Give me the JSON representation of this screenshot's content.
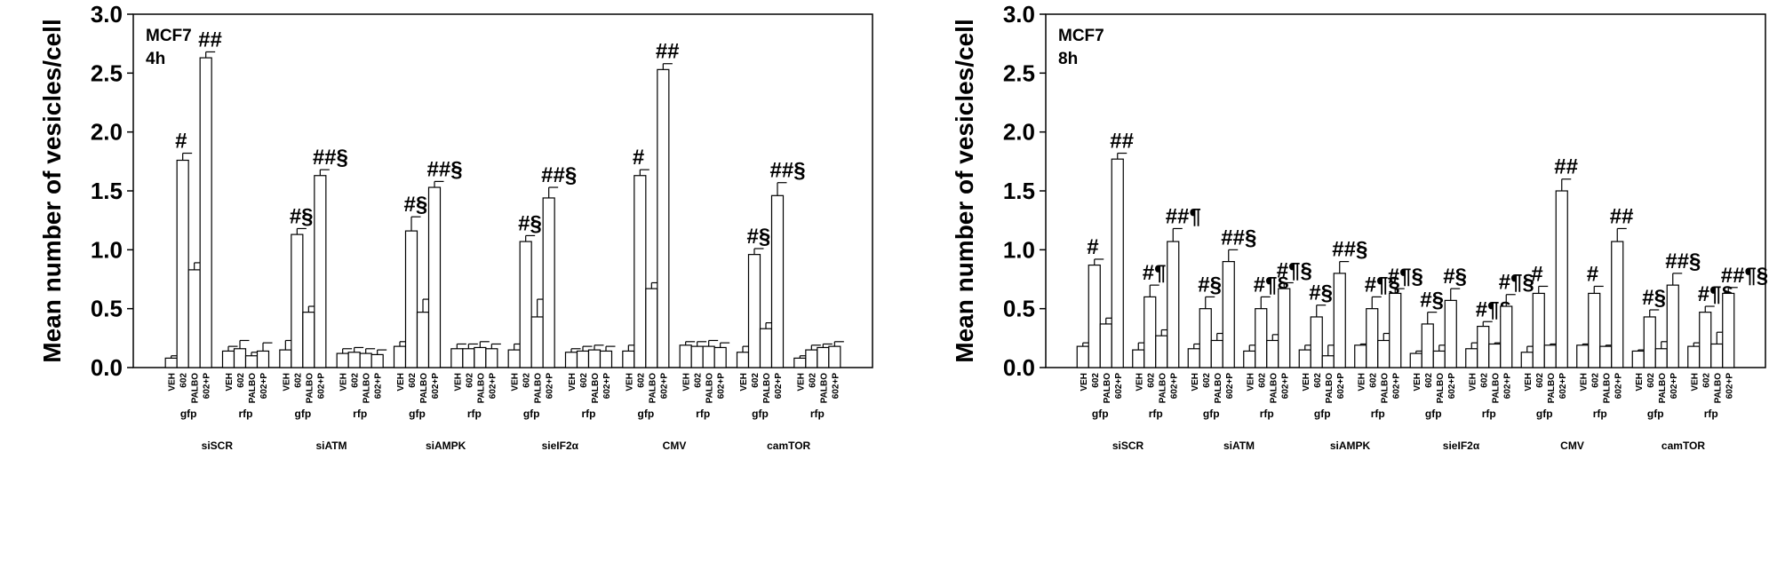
{
  "chart_data": [
    {
      "type": "bar",
      "label_lines": [
        "MCF7",
        "4h"
      ],
      "ylabel": "Mean number of vesicles/cell",
      "ylim": [
        0,
        3
      ],
      "yticks": [
        {
          "value": 0,
          "label": "0.0"
        },
        {
          "value": 0.5,
          "label": "0.5"
        },
        {
          "value": 1,
          "label": "1.0"
        },
        {
          "value": 1.5,
          "label": "1.5"
        },
        {
          "value": 2,
          "label": "2.0"
        },
        {
          "value": 2.5,
          "label": "2.5"
        },
        {
          "value": 3,
          "label": "3.0"
        }
      ],
      "bar_labels": [
        "VEH",
        "602",
        "PALBO",
        "602+P"
      ],
      "groups": [
        {
          "name": "siSCR",
          "subgroups": [
            {
              "name": "gfp",
              "values": [
                0.08,
                1.76,
                0.83,
                2.63
              ],
              "errors": [
                0.02,
                0.06,
                0.06,
                0.05
              ],
              "annotations": [
                null,
                "#",
                null,
                "##"
              ]
            },
            {
              "name": "rfp",
              "values": [
                0.14,
                0.16,
                0.1,
                0.14
              ],
              "errors": [
                0.04,
                0.07,
                0.03,
                0.07
              ],
              "annotations": [
                null,
                null,
                null,
                null
              ]
            }
          ]
        },
        {
          "name": "siATM",
          "subgroups": [
            {
              "name": "gfp",
              "values": [
                0.15,
                1.13,
                0.47,
                1.63
              ],
              "errors": [
                0.08,
                0.05,
                0.05,
                0.05
              ],
              "annotations": [
                null,
                "#§",
                null,
                "##§"
              ]
            },
            {
              "name": "rfp",
              "values": [
                0.12,
                0.13,
                0.12,
                0.11
              ],
              "errors": [
                0.04,
                0.04,
                0.04,
                0.04
              ],
              "annotations": [
                null,
                null,
                null,
                null
              ]
            }
          ]
        },
        {
          "name": "siAMPK",
          "subgroups": [
            {
              "name": "gfp",
              "values": [
                0.18,
                1.16,
                0.47,
                1.53
              ],
              "errors": [
                0.04,
                0.12,
                0.11,
                0.05
              ],
              "annotations": [
                null,
                "#§",
                null,
                "##§"
              ]
            },
            {
              "name": "rfp",
              "values": [
                0.16,
                0.16,
                0.17,
                0.16
              ],
              "errors": [
                0.04,
                0.04,
                0.05,
                0.04
              ],
              "annotations": [
                null,
                null,
                null,
                null
              ]
            }
          ]
        },
        {
          "name": "sieIF2α",
          "subgroups": [
            {
              "name": "gfp",
              "values": [
                0.15,
                1.07,
                0.43,
                1.44
              ],
              "errors": [
                0.05,
                0.05,
                0.15,
                0.09
              ],
              "annotations": [
                null,
                "#§",
                null,
                "##§"
              ]
            },
            {
              "name": "rfp",
              "values": [
                0.13,
                0.14,
                0.15,
                0.14
              ],
              "errors": [
                0.03,
                0.04,
                0.04,
                0.04
              ],
              "annotations": [
                null,
                null,
                null,
                null
              ]
            }
          ]
        },
        {
          "name": "CMV",
          "subgroups": [
            {
              "name": "gfp",
              "values": [
                0.14,
                1.63,
                0.67,
                2.53
              ],
              "errors": [
                0.05,
                0.05,
                0.05,
                0.05
              ],
              "annotations": [
                null,
                "#",
                null,
                "##"
              ]
            },
            {
              "name": "rfp",
              "values": [
                0.19,
                0.18,
                0.18,
                0.17
              ],
              "errors": [
                0.03,
                0.04,
                0.05,
                0.04
              ],
              "annotations": [
                null,
                null,
                null,
                null
              ]
            }
          ]
        },
        {
          "name": "camTOR",
          "subgroups": [
            {
              "name": "gfp",
              "values": [
                0.13,
                0.96,
                0.33,
                1.46
              ],
              "errors": [
                0.05,
                0.05,
                0.05,
                0.11
              ],
              "annotations": [
                null,
                "#§",
                null,
                "##§"
              ]
            },
            {
              "name": "rfp",
              "values": [
                0.08,
                0.15,
                0.17,
                0.18
              ],
              "errors": [
                0.02,
                0.04,
                0.03,
                0.04
              ],
              "annotations": [
                null,
                null,
                null,
                null
              ]
            }
          ]
        }
      ]
    },
    {
      "type": "bar",
      "label_lines": [
        "MCF7",
        "8h"
      ],
      "ylabel": "Mean number of vesicles/cell",
      "ylim": [
        0,
        3
      ],
      "yticks": [
        {
          "value": 0,
          "label": "0.0"
        },
        {
          "value": 0.5,
          "label": "0.5"
        },
        {
          "value": 1,
          "label": "1.0"
        },
        {
          "value": 1.5,
          "label": "1.5"
        },
        {
          "value": 2,
          "label": "2.0"
        },
        {
          "value": 2.5,
          "label": "2.5"
        },
        {
          "value": 3,
          "label": "3.0"
        }
      ],
      "bar_labels": [
        "VEH",
        "602",
        "PALBO",
        "602+P"
      ],
      "groups": [
        {
          "name": "siSCR",
          "subgroups": [
            {
              "name": "gfp",
              "values": [
                0.18,
                0.87,
                0.37,
                1.77
              ],
              "errors": [
                0.03,
                0.05,
                0.05,
                0.05
              ],
              "annotations": [
                null,
                "#",
                null,
                "##"
              ]
            },
            {
              "name": "rfp",
              "values": [
                0.15,
                0.6,
                0.27,
                1.07
              ],
              "errors": [
                0.06,
                0.1,
                0.05,
                0.11
              ],
              "annotations": [
                null,
                "#¶",
                null,
                "##¶"
              ]
            }
          ]
        },
        {
          "name": "siATM",
          "subgroups": [
            {
              "name": "gfp",
              "values": [
                0.16,
                0.5,
                0.23,
                0.9
              ],
              "errors": [
                0.04,
                0.1,
                0.06,
                0.1
              ],
              "annotations": [
                null,
                "#§",
                null,
                "##§"
              ]
            },
            {
              "name": "rfp",
              "values": [
                0.14,
                0.5,
                0.23,
                0.67
              ],
              "errors": [
                0.05,
                0.1,
                0.05,
                0.05
              ],
              "annotations": [
                null,
                "#¶§",
                null,
                "#¶§"
              ]
            }
          ]
        },
        {
          "name": "siAMPK",
          "subgroups": [
            {
              "name": "gfp",
              "values": [
                0.15,
                0.43,
                0.1,
                0.8
              ],
              "errors": [
                0.04,
                0.1,
                0.09,
                0.1
              ],
              "annotations": [
                null,
                "#§",
                null,
                "##§"
              ]
            },
            {
              "name": "rfp",
              "values": [
                0.19,
                0.5,
                0.23,
                0.63
              ],
              "errors": [
                0.01,
                0.1,
                0.06,
                0.04
              ],
              "annotations": [
                null,
                "#¶§",
                null,
                "#¶§"
              ]
            }
          ]
        },
        {
          "name": "sieIF2α",
          "subgroups": [
            {
              "name": "gfp",
              "values": [
                0.12,
                0.37,
                0.14,
                0.57
              ],
              "errors": [
                0.02,
                0.1,
                0.05,
                0.1
              ],
              "annotations": [
                null,
                "#§",
                null,
                "#§"
              ]
            },
            {
              "name": "rfp",
              "values": [
                0.16,
                0.35,
                0.2,
                0.52
              ],
              "errors": [
                0.05,
                0.04,
                0.01,
                0.1
              ],
              "annotations": [
                null,
                "#¶§",
                null,
                "#¶§"
              ]
            }
          ]
        },
        {
          "name": "CMV",
          "subgroups": [
            {
              "name": "gfp",
              "values": [
                0.13,
                0.63,
                0.19,
                1.5
              ],
              "errors": [
                0.05,
                0.06,
                0.01,
                0.1
              ],
              "annotations": [
                null,
                "#",
                null,
                "##"
              ]
            },
            {
              "name": "rfp",
              "values": [
                0.19,
                0.63,
                0.18,
                1.07
              ],
              "errors": [
                0.01,
                0.06,
                0.01,
                0.11
              ],
              "annotations": [
                null,
                "#",
                null,
                "##"
              ]
            }
          ]
        },
        {
          "name": "camTOR",
          "subgroups": [
            {
              "name": "gfp",
              "values": [
                0.14,
                0.43,
                0.16,
                0.7
              ],
              "errors": [
                0.01,
                0.06,
                0.06,
                0.1
              ],
              "annotations": [
                null,
                "#§",
                null,
                "##§"
              ]
            },
            {
              "name": "rfp",
              "values": [
                0.18,
                0.47,
                0.2,
                0.63
              ],
              "errors": [
                0.03,
                0.05,
                0.1,
                0.05
              ],
              "annotations": [
                null,
                "#¶§",
                null,
                "##¶§"
              ]
            }
          ]
        }
      ]
    }
  ]
}
